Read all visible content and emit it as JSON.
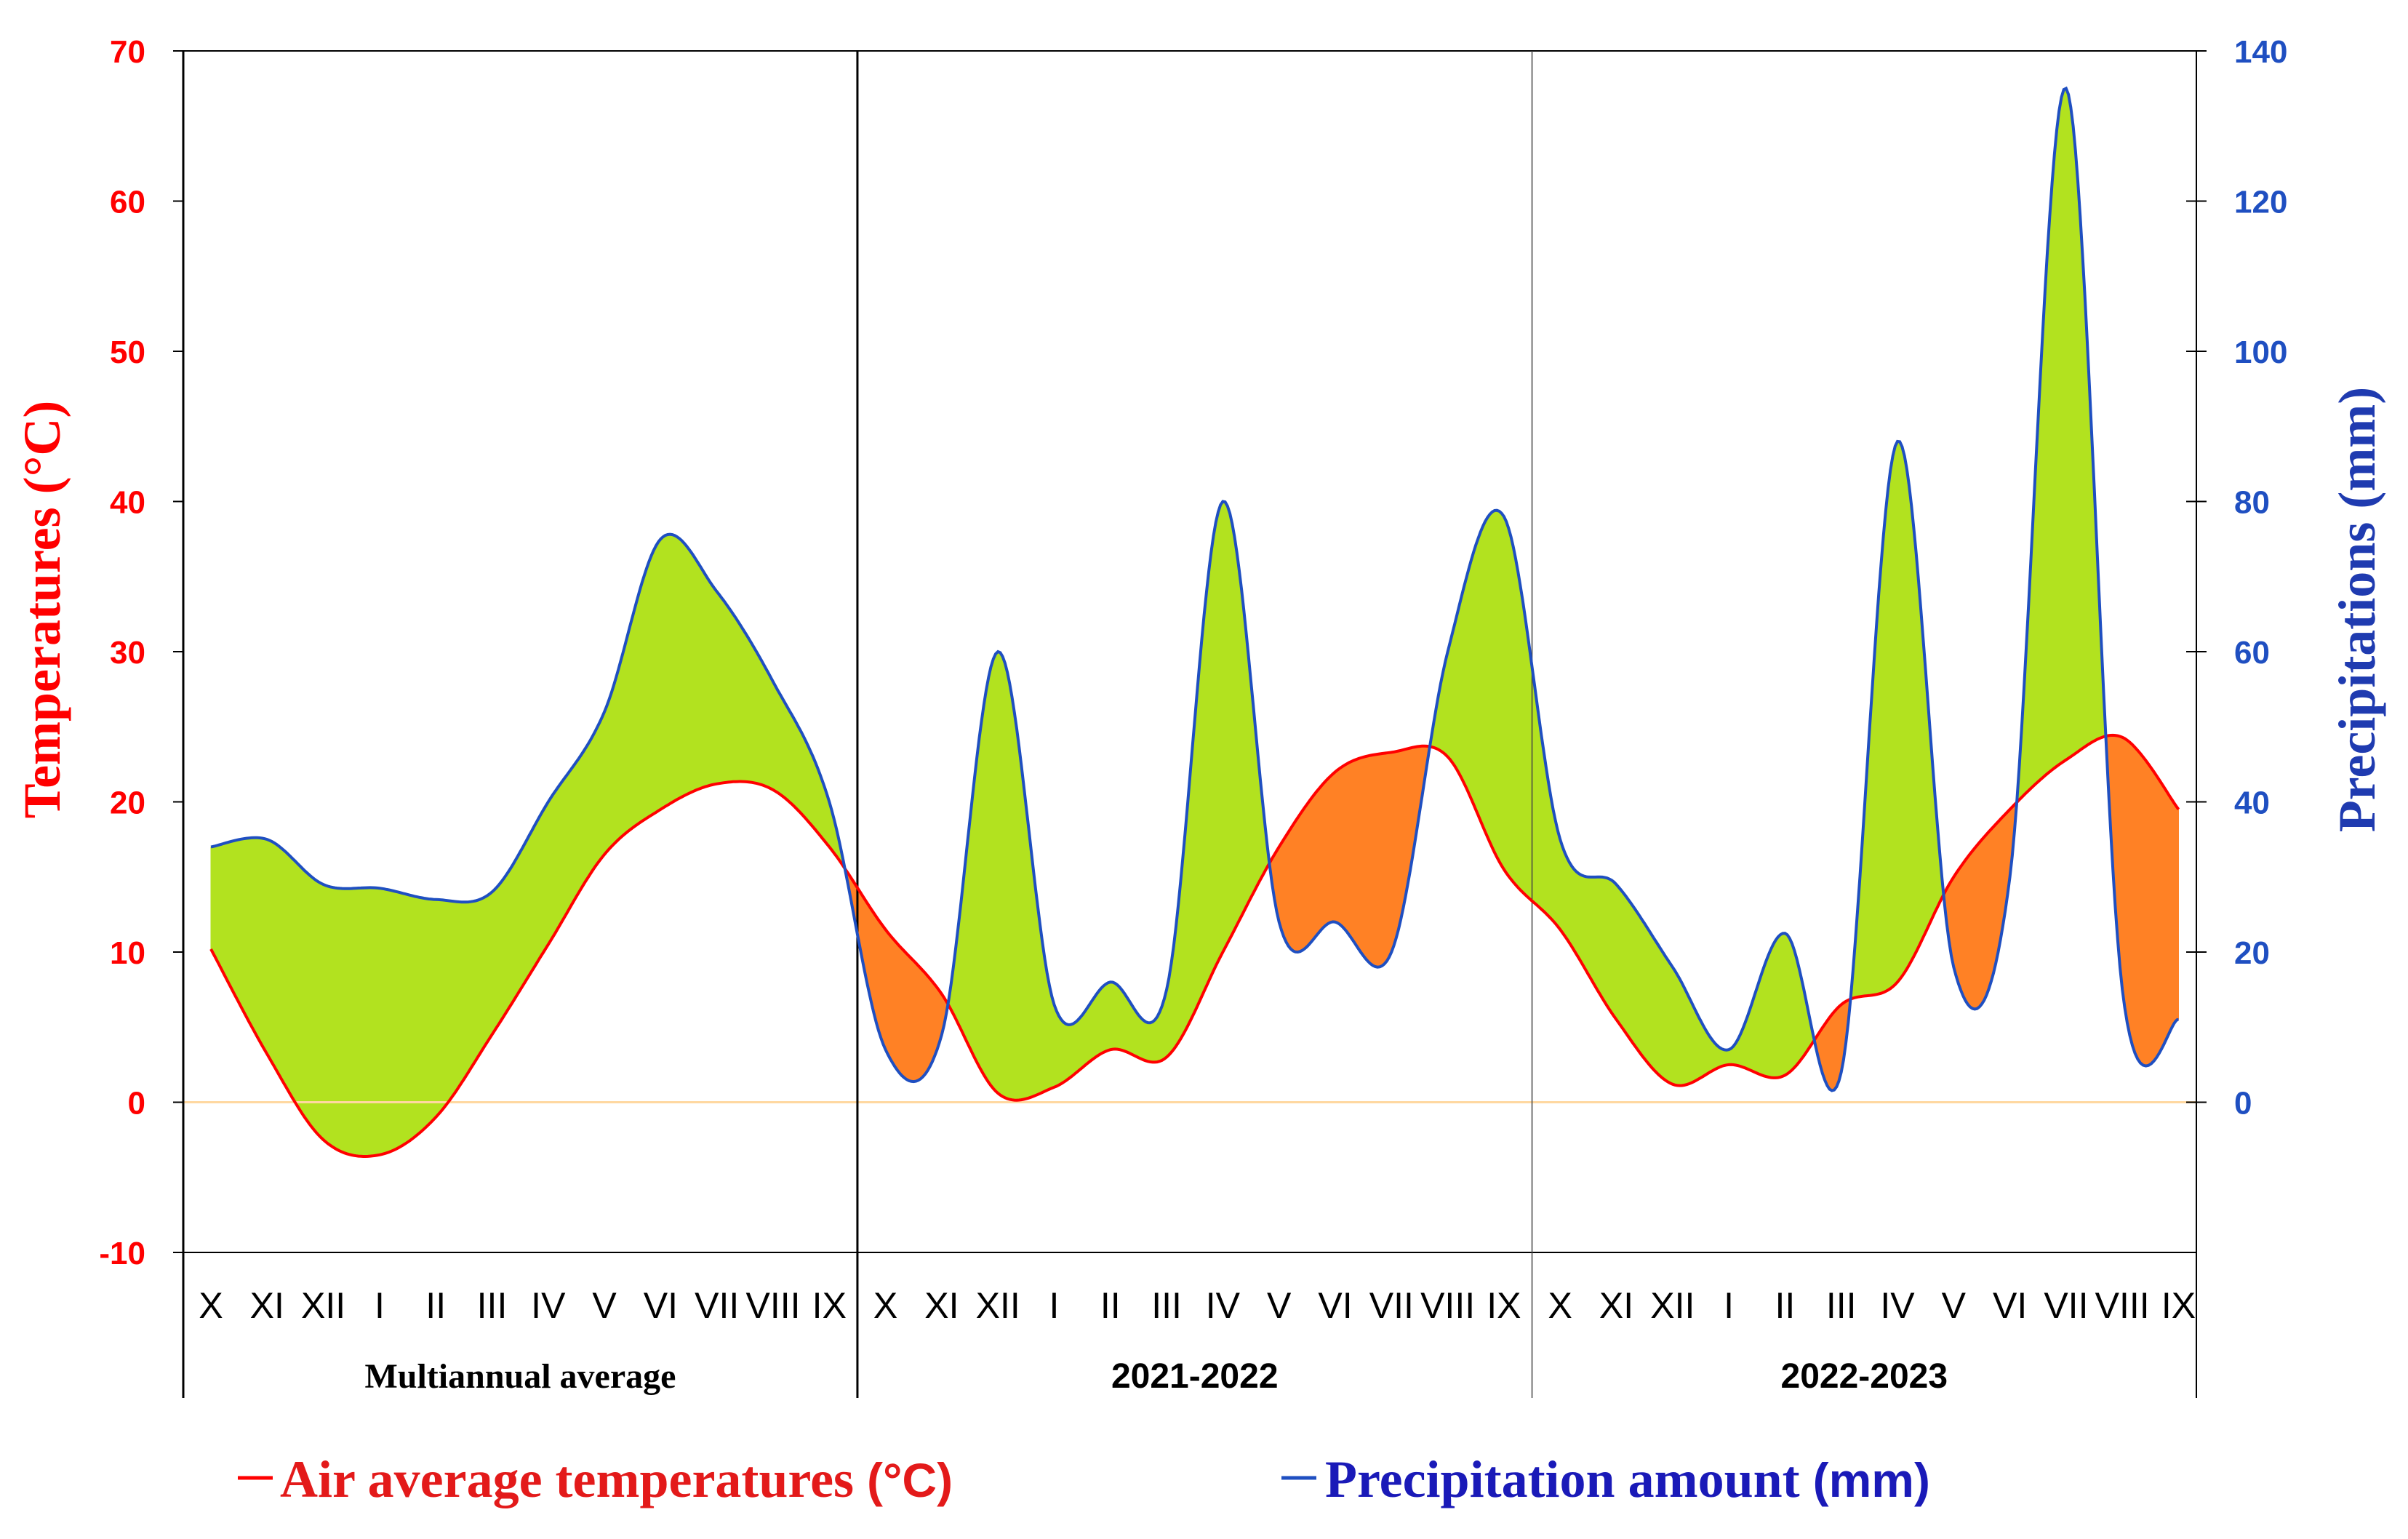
{
  "chart_data": {
    "type": "line",
    "title": "",
    "months": [
      "X",
      "XI",
      "XII",
      "I",
      "II",
      "III",
      "IV",
      "V",
      "VI",
      "VII",
      "VIII",
      "IX"
    ],
    "periods": [
      "Multiannual average",
      "2021-2022",
      "2022-2023"
    ],
    "ylabel_left": "Temperatures (°C)",
    "ylabel_right": "Precipitations (mm)",
    "ylim_left": [
      -10,
      70
    ],
    "ylim_right": [
      -20,
      140
    ],
    "yticks_left": [
      "70",
      "60",
      "50",
      "40",
      "30",
      "20",
      "10",
      "0",
      "-10"
    ],
    "yticks_right": [
      "140",
      "120",
      "100",
      "80",
      "60",
      "40",
      "20",
      "0"
    ],
    "series": [
      {
        "name": "Air average temperatures (°C)",
        "axis": "left",
        "color": "#ff0000",
        "values": [
          10.2,
          3.2,
          -2.5,
          -3.5,
          -1.0,
          4.5,
          10.5,
          16.5,
          19.5,
          21.2,
          20.8,
          17.0,
          11.5,
          7.2,
          0.6,
          1.0,
          3.5,
          3.0,
          10.0,
          17.0,
          22.0,
          23.3,
          23.0,
          15.5,
          11.5,
          5.5,
          1.2,
          2.5,
          1.8,
          6.5,
          8.0,
          15.0,
          19.5,
          22.8,
          24.3,
          19.5
        ]
      },
      {
        "name": "Precipitation amount (mm)",
        "axis": "right",
        "color": "#1f4fc1",
        "values": [
          34,
          35,
          29,
          28.5,
          27,
          28,
          40,
          52,
          75,
          68,
          56,
          40,
          7,
          9,
          60,
          13,
          16,
          15,
          80,
          24,
          24,
          20,
          60,
          78,
          35,
          29,
          18,
          7,
          22.5,
          4,
          88,
          18,
          30,
          135,
          15,
          11
        ]
      }
    ],
    "fill_colors": {
      "precip_above": "#b2e21f",
      "temp_above": "#ff8125"
    },
    "zero_line_color": "#ffd8a0"
  },
  "legend": {
    "temp_text": "Air average temperatures ",
    "temp_unit": "(°C)",
    "prec_text": "Precipitation amount ",
    "prec_unit": "(mm)"
  }
}
